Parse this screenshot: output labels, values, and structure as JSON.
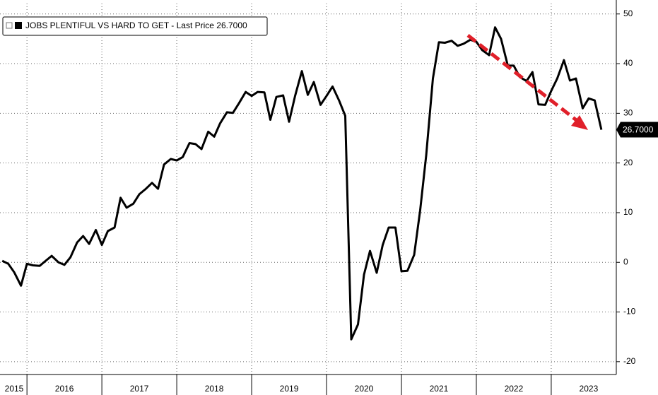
{
  "chart_data": {
    "type": "line",
    "series": [
      {
        "name": "JOBS PLENTIFUL VS HARD TO GET - Last Price 26.7000",
        "color": "#000000",
        "values": [
          0.3,
          -0.3,
          -2,
          -4.7,
          -0.3,
          -0.6,
          -0.7,
          0.3,
          1.3,
          0,
          -0.5,
          1,
          4,
          5.3,
          3.7,
          6.5,
          3.5,
          6.3,
          7,
          13,
          11,
          11.8,
          13.7,
          14.7,
          16,
          14.8,
          19.7,
          20.8,
          20.5,
          21.2,
          24,
          23.8,
          22.8,
          26.3,
          25.3,
          28,
          30.2,
          30.1,
          32,
          34.3,
          33.5,
          34.3,
          34.2,
          28.7,
          33.3,
          33.6,
          28.3,
          33.5,
          38.5,
          33.7,
          36.3,
          31.7,
          33.5,
          35.4,
          32.5,
          29.5,
          -15.5,
          -12.5,
          -2.5,
          2.3,
          -2.1,
          3.5,
          7,
          7,
          -1.8,
          -1.7,
          1.5,
          10.5,
          21.5,
          37,
          44.3,
          44.2,
          44.6,
          43.6,
          44,
          44.8,
          44.4,
          42.7,
          41.7,
          47.3,
          45,
          39.6,
          39.6,
          37.3,
          36.5,
          38.3,
          31.8,
          31.7,
          34.5,
          37,
          40.7,
          36.6,
          37,
          31,
          33,
          32.6,
          26.7
        ]
      }
    ],
    "x": [
      2015.67,
      2015.75,
      2015.83,
      2015.92,
      2016.0,
      2016.08,
      2016.17,
      2016.25,
      2016.33,
      2016.42,
      2016.5,
      2016.58,
      2016.67,
      2016.75,
      2016.83,
      2016.92,
      2017.0,
      2017.08,
      2017.17,
      2017.25,
      2017.33,
      2017.42,
      2017.5,
      2017.58,
      2017.67,
      2017.75,
      2017.83,
      2017.92,
      2018.0,
      2018.08,
      2018.17,
      2018.25,
      2018.33,
      2018.42,
      2018.5,
      2018.58,
      2018.67,
      2018.75,
      2018.83,
      2018.92,
      2019.0,
      2019.08,
      2019.17,
      2019.25,
      2019.33,
      2019.42,
      2019.5,
      2019.58,
      2019.67,
      2019.75,
      2019.83,
      2019.92,
      2020.0,
      2020.08,
      2020.17,
      2020.25,
      2020.33,
      2020.42,
      2020.5,
      2020.58,
      2020.67,
      2020.75,
      2020.83,
      2020.92,
      2021.0,
      2021.08,
      2021.17,
      2021.25,
      2021.33,
      2021.42,
      2021.5,
      2021.58,
      2021.67,
      2021.75,
      2021.83,
      2021.92,
      2022.0,
      2022.08,
      2022.17,
      2022.25,
      2022.33,
      2022.42,
      2022.5,
      2022.58,
      2022.67,
      2022.75,
      2022.83,
      2022.92,
      2023.0,
      2023.08,
      2023.17,
      2023.25,
      2023.33,
      2023.42,
      2023.5,
      2023.58,
      2023.67
    ],
    "last_price": {
      "value": 26.7,
      "label": "26.7000"
    },
    "xlim": [
      2015.64,
      2023.85
    ],
    "xticks": [
      2015,
      2016,
      2017,
      2018,
      2019,
      2020,
      2021,
      2022,
      2023
    ],
    "ylim": [
      -22.3,
      52.1
    ],
    "yticks": [
      -20,
      -10,
      0,
      10,
      20,
      30,
      40,
      50
    ],
    "grid": true
  }
}
